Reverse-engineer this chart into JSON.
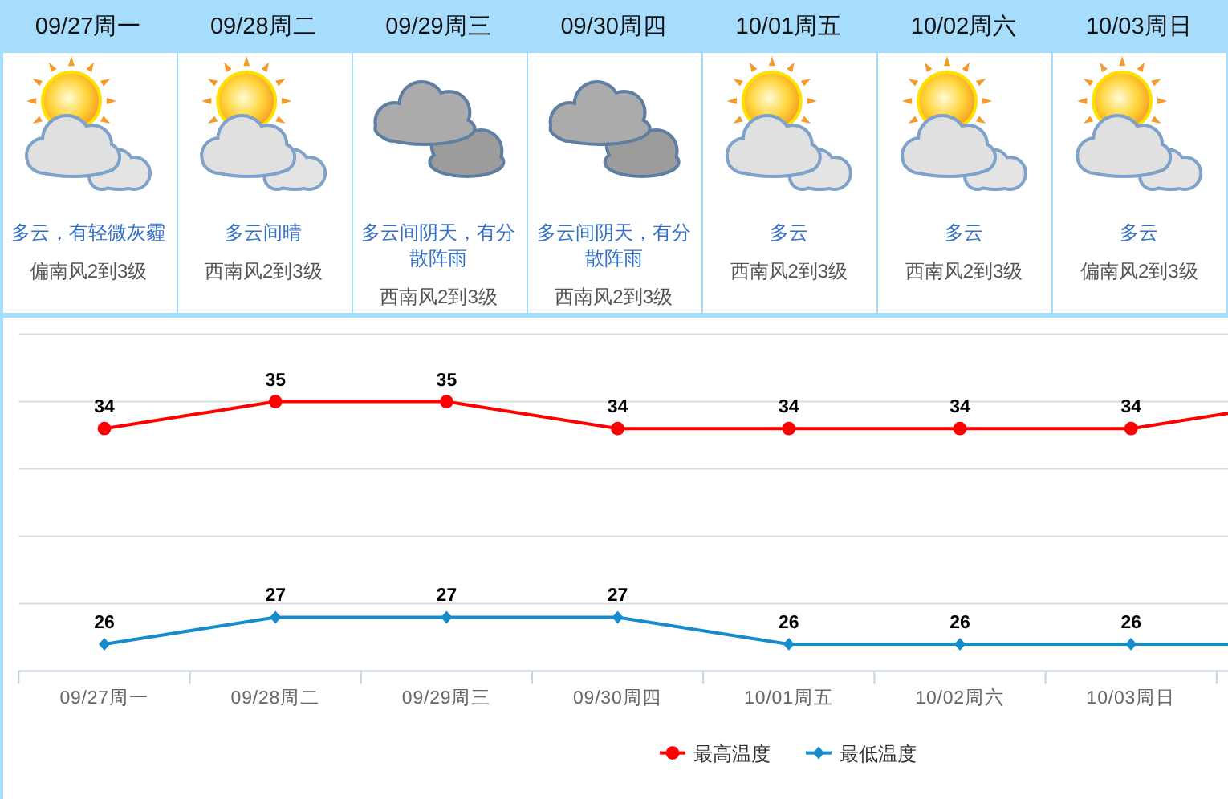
{
  "chart_data": [
    {
      "type": "other",
      "categories": [
        "09/27周一",
        "09/28周二",
        "09/29周三",
        "09/30周四",
        "10/01周五",
        "10/02周六",
        "10/03周日"
      ],
      "annotations": [
        "多云，有轻微灰霾",
        "偏南风2到3级",
        "多云间晴",
        "西南风2到3级",
        "多云间阴天，有分散阵雨",
        "西南风2到3级",
        "多云间阴天，有分散阵雨",
        "西南风2到3级",
        "多云",
        "西南风2到3级",
        "多云",
        "西南风2到3级",
        "多云",
        "偏南风2到3级"
      ]
    },
    {
      "type": "line",
      "categories": [
        "09/27周一",
        "09/28周二",
        "09/29周三",
        "09/30周四",
        "10/01周五",
        "10/02周六",
        "10/03周日",
        null
      ],
      "series": [
        {
          "name": "最高温度",
          "color": "#ff0000",
          "marker": "circle",
          "values": [
            34,
            35,
            35,
            34,
            34,
            34,
            34,
            35
          ],
          "value_labels": [
            "34",
            "35",
            "35",
            "34",
            "34",
            "34",
            "34",
            null
          ]
        },
        {
          "name": "最低温度",
          "color": "#168ccc",
          "marker": "diamond",
          "values": [
            26,
            27,
            27,
            27,
            26,
            26,
            26,
            26
          ],
          "value_labels": [
            "26",
            "27",
            "27",
            "27",
            "26",
            "26",
            "26",
            null
          ]
        }
      ],
      "ylim": [
        25,
        37.5
      ],
      "yticks": [
        {
          "value": 25,
          "label": null
        },
        {
          "value": 27.5,
          "label": null
        },
        {
          "value": 30,
          "label": null
        },
        {
          "value": 32.5,
          "label": null
        },
        {
          "value": 35,
          "label": null
        },
        {
          "value": 37.5,
          "label": null
        }
      ],
      "tick_labels": "x",
      "grid": "y",
      "legend": "bottom"
    }
  ]
}
